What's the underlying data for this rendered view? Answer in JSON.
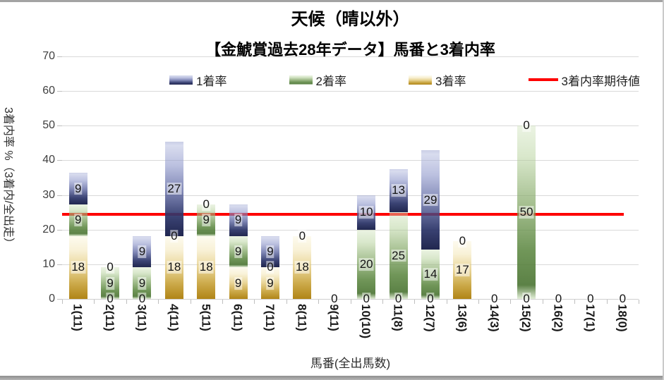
{
  "title": "天候（晴以外）",
  "subtitle": "【金鯱賞過去28年データ】馬番と3着内率",
  "legend": {
    "items": [
      {
        "label": "1着率",
        "swatch": "blue-gradient-swatch"
      },
      {
        "label": "2着率",
        "swatch": "green-gradient-swatch"
      },
      {
        "label": "3着率",
        "swatch": "gold-gradient-swatch"
      },
      {
        "label": "3着内率期待値",
        "swatch": "red-line-swatch"
      }
    ]
  },
  "y_axis": {
    "title": "3着内率 %（3着内/全出走）",
    "ticks": [
      0,
      10,
      20,
      30,
      40,
      50,
      60,
      70
    ],
    "max": 70
  },
  "x_axis": {
    "title": "馬番(全出馬数)"
  },
  "colors": {
    "first_dark": "#252c5e",
    "first_light": "#aab2d8",
    "second_dark": "#4e7c38",
    "second_light": "#cde3bc",
    "third_dark": "#b8860e",
    "third_light": "#f7efd2",
    "expected_line": "#fe0000",
    "gridline": "#d9d9d9"
  },
  "chart_data": {
    "type": "bar",
    "subtype": "stacked bars with horizontal expected-value line",
    "title": "天候（晴以外）",
    "subtitle": "【金鯱賞過去28年データ】馬番と3着内率",
    "xlabel": "馬番(全出馬数)",
    "ylabel": "3着内率 %（3着内/全出走）",
    "ylim": [
      0,
      70
    ],
    "grid": true,
    "legend_position": "top",
    "categories": [
      "1(11)",
      "2(11)",
      "3(11)",
      "4(11)",
      "5(11)",
      "6(11)",
      "7(11)",
      "8(11)",
      "9(11)",
      "10(10)",
      "11(8)",
      "12(7)",
      "13(6)",
      "14(3)",
      "15(2)",
      "16(2)",
      "17(1)",
      "18(0)"
    ],
    "series": [
      {
        "name": "1着率",
        "key": "first",
        "stack_position": "top",
        "heights_pct": [
          9.09,
          0,
          9.09,
          27.27,
          0,
          9.09,
          9.09,
          0,
          0,
          10,
          12.5,
          28.57,
          0,
          0,
          0,
          0,
          0,
          0
        ],
        "labels": [
          "9",
          "0",
          "9",
          "27",
          "0",
          "9",
          "9",
          "0",
          "0",
          "10",
          "13",
          "29",
          "0",
          "0",
          "0",
          "0",
          "0",
          "0"
        ]
      },
      {
        "name": "2着率",
        "key": "second",
        "stack_position": "middle",
        "heights_pct": [
          9.09,
          9.09,
          9.09,
          0,
          9.09,
          9.09,
          0,
          0,
          0,
          20,
          25,
          14.29,
          0,
          0,
          50,
          0,
          0,
          0
        ],
        "labels": [
          "9",
          "9",
          "9",
          "0",
          "9",
          "9",
          "0",
          "0",
          "0",
          "20",
          "25",
          "14",
          "0",
          "0",
          "50",
          "0",
          "0",
          "0"
        ]
      },
      {
        "name": "3着率",
        "key": "third",
        "stack_position": "bottom",
        "heights_pct": [
          18.18,
          0,
          0,
          18.18,
          18.18,
          9.09,
          9.09,
          18.18,
          0,
          0,
          0,
          0,
          16.67,
          0,
          0,
          0,
          0,
          0
        ],
        "labels": [
          "18",
          "0",
          "0",
          "18",
          "18",
          "9",
          "9",
          "18",
          "0",
          "0",
          "0",
          "0",
          "17",
          "0",
          "0",
          "0",
          "0",
          "0"
        ]
      }
    ],
    "line": {
      "name": "3着内率期待値",
      "value_pct": 24.4,
      "color": "#fe0000"
    }
  }
}
